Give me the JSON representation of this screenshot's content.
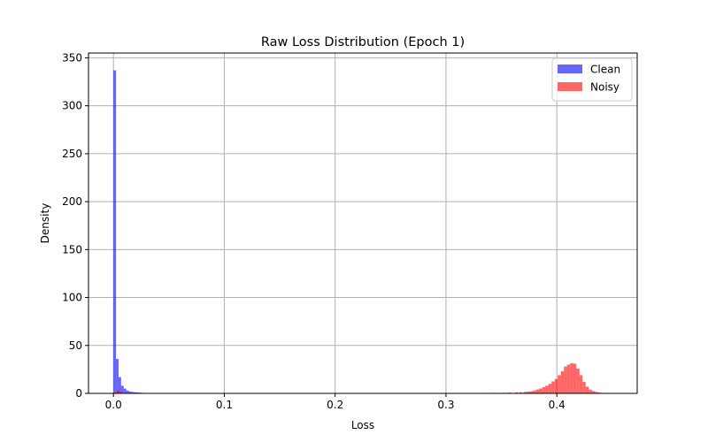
{
  "chart_data": {
    "type": "bar",
    "title": "Raw Loss Distribution (Epoch 1)",
    "xlabel": "Loss",
    "ylabel": "Density",
    "xlim": [
      -0.0225,
      0.4725
    ],
    "ylim": [
      0,
      355
    ],
    "xticks": [
      0.0,
      0.1,
      0.2,
      0.3,
      0.4
    ],
    "xtick_labels": [
      "0.0",
      "0.1",
      "0.2",
      "0.3",
      "0.4"
    ],
    "yticks": [
      0,
      50,
      100,
      150,
      200,
      250,
      300,
      350
    ],
    "ytick_labels": [
      "0",
      "50",
      "100",
      "150",
      "200",
      "250",
      "300",
      "350"
    ],
    "grid": true,
    "legend_position": "top-right",
    "series": [
      {
        "name": "Clean",
        "color": "#0000ff",
        "alpha": 0.6,
        "bin_width": 0.0023,
        "bins": [
          [
            0.0,
            337
          ],
          [
            0.0023,
            36
          ],
          [
            0.0046,
            17
          ],
          [
            0.0069,
            8
          ],
          [
            0.0092,
            5
          ],
          [
            0.0115,
            3
          ],
          [
            0.0138,
            2
          ],
          [
            0.0161,
            1.5
          ],
          [
            0.0184,
            1.2
          ],
          [
            0.0207,
            1.0
          ],
          [
            0.023,
            0.8
          ],
          [
            0.0253,
            0.6
          ]
        ]
      },
      {
        "name": "Noisy",
        "color": "#ff0000",
        "alpha": 0.6,
        "bin_width": 0.0028,
        "bins": [
          [
            0.0,
            1.0
          ],
          [
            0.0028,
            3.0
          ],
          [
            0.0056,
            1.5
          ],
          [
            0.311,
            0.5
          ],
          [
            0.322,
            0.4
          ],
          [
            0.336,
            0.5
          ],
          [
            0.342,
            0.6
          ],
          [
            0.35,
            0.6
          ],
          [
            0.356,
            0.8
          ],
          [
            0.362,
            1.0
          ],
          [
            0.366,
            1.2
          ],
          [
            0.37,
            1.5
          ],
          [
            0.3728,
            1.8
          ],
          [
            0.3756,
            2.2
          ],
          [
            0.3784,
            3.0
          ],
          [
            0.3812,
            4.0
          ],
          [
            0.384,
            5.0
          ],
          [
            0.3868,
            6.5
          ],
          [
            0.3896,
            8.0
          ],
          [
            0.3924,
            10.0
          ],
          [
            0.3952,
            12.5
          ],
          [
            0.398,
            15.0
          ],
          [
            0.4008,
            19.0
          ],
          [
            0.4036,
            23.0
          ],
          [
            0.4064,
            28.0
          ],
          [
            0.4092,
            30.0
          ],
          [
            0.412,
            31.5
          ],
          [
            0.4148,
            31.0
          ],
          [
            0.4176,
            26.0
          ],
          [
            0.4204,
            19.0
          ],
          [
            0.4232,
            12.0
          ],
          [
            0.426,
            7.0
          ],
          [
            0.4288,
            4.0
          ],
          [
            0.4316,
            2.5
          ],
          [
            0.4344,
            1.5
          ],
          [
            0.4372,
            0.8
          ],
          [
            0.44,
            0.4
          ]
        ]
      }
    ]
  }
}
